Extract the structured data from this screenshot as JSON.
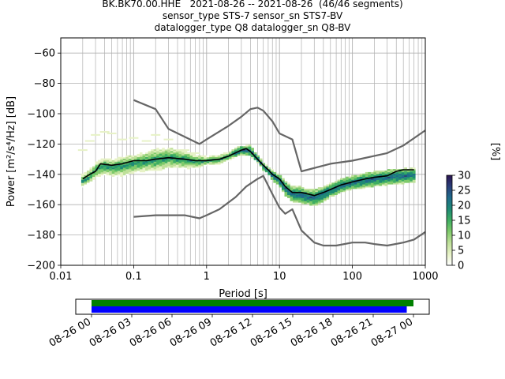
{
  "figure": {
    "title_lines": [
      "BK.BK70.00.HHE   2021-08-26 -- 2021-08-26  (46/46 segments)",
      "sensor_type STS-7 sensor_sn STS7-BV",
      "datalogger_type Q8 datalogger_sn Q8-BV"
    ]
  },
  "chart_data": [
    {
      "type": "heatmap",
      "title": "BK.BK70.00.HHE   2021-08-26 -- 2021-08-26  (46/46 segments)",
      "xlabel": "Period [s]",
      "ylabel": "Power [m²/s⁴/Hz] [dB]",
      "xscale": "log",
      "xlim": [
        0.01,
        1000
      ],
      "ylim": [
        -200,
        -50
      ],
      "x_ticks": [
        0.01,
        0.1,
        1,
        10,
        100,
        1000
      ],
      "x_tick_labels": [
        "0.01",
        "0.1",
        "1",
        "10",
        "100",
        "1000"
      ],
      "y_ticks": [
        -200,
        -180,
        -160,
        -140,
        -120,
        -100,
        -80,
        -60
      ],
      "y_tick_labels": [
        "−200",
        "−180",
        "−160",
        "−140",
        "−120",
        "−100",
        "−80",
        "−60"
      ],
      "grid": true,
      "colorbar": {
        "label": "[%]",
        "range": [
          0,
          30
        ],
        "ticks": [
          0,
          5,
          10,
          15,
          20,
          25,
          30
        ],
        "colors": [
          "#ffffff",
          "#e7f2c6",
          "#bfe09a",
          "#7fca6a",
          "#3fae62",
          "#1e8a75",
          "#1f6b8a",
          "#2a3f7a",
          "#2b1450"
        ]
      },
      "mean_curve": {
        "color": "#000000",
        "points": [
          [
            0.02,
            -143
          ],
          [
            0.025,
            -140
          ],
          [
            0.03,
            -138
          ],
          [
            0.035,
            -133
          ],
          [
            0.05,
            -134
          ],
          [
            0.07,
            -133
          ],
          [
            0.1,
            -131
          ],
          [
            0.15,
            -131
          ],
          [
            0.2,
            -130
          ],
          [
            0.3,
            -129
          ],
          [
            0.5,
            -130
          ],
          [
            0.7,
            -131
          ],
          [
            1,
            -131
          ],
          [
            1.5,
            -130
          ],
          [
            2,
            -128
          ],
          [
            3,
            -124
          ],
          [
            3.5,
            -123
          ],
          [
            4,
            -125
          ],
          [
            5,
            -130
          ],
          [
            6,
            -134
          ],
          [
            7,
            -137
          ],
          [
            8,
            -140
          ],
          [
            10,
            -143
          ],
          [
            12,
            -148
          ],
          [
            15,
            -152
          ],
          [
            20,
            -152
          ],
          [
            25,
            -153
          ],
          [
            30,
            -154
          ],
          [
            40,
            -152
          ],
          [
            50,
            -150
          ],
          [
            70,
            -147
          ],
          [
            100,
            -145
          ],
          [
            150,
            -143
          ],
          [
            200,
            -142
          ],
          [
            300,
            -141
          ],
          [
            400,
            -138
          ],
          [
            500,
            -137
          ],
          [
            700,
            -137
          ]
        ]
      },
      "nhnm_curve": {
        "color": "#666666",
        "points": [
          [
            0.1,
            -168
          ],
          [
            0.2,
            -167
          ],
          [
            0.5,
            -167
          ],
          [
            0.8,
            -169
          ],
          [
            1,
            -167
          ],
          [
            1.5,
            -163
          ],
          [
            2.5,
            -155
          ],
          [
            3.5,
            -148
          ],
          [
            5,
            -143
          ],
          [
            5.5,
            -142
          ],
          [
            6,
            -141
          ],
          [
            8,
            -153
          ],
          [
            10,
            -162
          ],
          [
            12,
            -166
          ],
          [
            15,
            -163
          ],
          [
            20,
            -177
          ],
          [
            30,
            -185
          ],
          [
            40,
            -187
          ],
          [
            60,
            -187
          ],
          [
            100,
            -185
          ],
          [
            150,
            -185
          ],
          [
            200,
            -186
          ],
          [
            300,
            -187
          ],
          [
            500,
            -185
          ],
          [
            700,
            -183
          ],
          [
            1000,
            -178
          ]
        ]
      },
      "nlnm_curve": {
        "color": "#666666",
        "points": [
          [
            0.1,
            -91
          ],
          [
            0.2,
            -97
          ],
          [
            0.3,
            -110
          ],
          [
            0.8,
            -120
          ],
          [
            1,
            -117
          ],
          [
            2,
            -108
          ],
          [
            3,
            -102
          ],
          [
            4,
            -97
          ],
          [
            5,
            -96
          ],
          [
            6,
            -98
          ],
          [
            8,
            -105
          ],
          [
            10,
            -113
          ],
          [
            15,
            -117
          ],
          [
            20,
            -138
          ],
          [
            50,
            -133
          ],
          [
            100,
            -131
          ],
          [
            300,
            -126
          ],
          [
            500,
            -121
          ],
          [
            1000,
            -111
          ]
        ]
      },
      "psd_band": {
        "x": [
          0.02,
          0.025,
          0.03,
          0.04,
          0.05,
          0.07,
          0.1,
          0.15,
          0.2,
          0.3,
          0.5,
          0.7,
          1,
          1.5,
          2,
          3,
          4,
          5,
          6,
          7,
          8,
          10,
          12,
          15,
          20,
          25,
          30,
          40,
          50,
          70,
          100,
          150,
          200,
          300,
          500,
          700
        ],
        "low": [
          -148,
          -146,
          -142,
          -140,
          -141,
          -141,
          -139,
          -138,
          -138,
          -136,
          -136,
          -136,
          -134,
          -133,
          -131,
          -127,
          -128,
          -132,
          -137,
          -140,
          -144,
          -148,
          -154,
          -158,
          -159,
          -160,
          -161,
          -158,
          -155,
          -152,
          -150,
          -149,
          -148,
          -147,
          -146,
          -145
        ],
        "high": [
          -140,
          -137,
          -132,
          -129,
          -130,
          -128,
          -127,
          -125,
          -123,
          -122,
          -124,
          -127,
          -128,
          -127,
          -125,
          -121,
          -121,
          -127,
          -132,
          -135,
          -137,
          -140,
          -144,
          -148,
          -148,
          -150,
          -150,
          -148,
          -146,
          -143,
          -141,
          -139,
          -138,
          -137,
          -136,
          -136
        ],
        "outliers": [
          [
            0.02,
            -124
          ],
          [
            0.025,
            -118
          ],
          [
            0.03,
            -114
          ],
          [
            0.04,
            -112
          ],
          [
            0.05,
            -113
          ],
          [
            0.07,
            -117
          ],
          [
            0.1,
            -116
          ],
          [
            0.15,
            -118
          ],
          [
            0.2,
            -114
          ],
          [
            0.3,
            -117
          ],
          [
            0.5,
            -124
          ],
          [
            0.7,
            -126
          ]
        ]
      }
    },
    {
      "type": "bar",
      "title": "",
      "xlabel": "",
      "ylabel": "",
      "time_range": [
        "2021-08-26 00:00",
        "2021-08-27 00:00"
      ],
      "x_tick_labels": [
        "08-26 00",
        "08-26 03",
        "08-26 06",
        "08-26 09",
        "08-26 12",
        "08-26 15",
        "08-26 18",
        "08-26 21",
        "08-27 00"
      ],
      "series": [
        {
          "color": "#008000",
          "start_hours": 0.0,
          "end_hours": 24.0
        },
        {
          "color": "#0000ff",
          "start_hours": 0.0,
          "end_hours": 23.5
        }
      ]
    }
  ]
}
